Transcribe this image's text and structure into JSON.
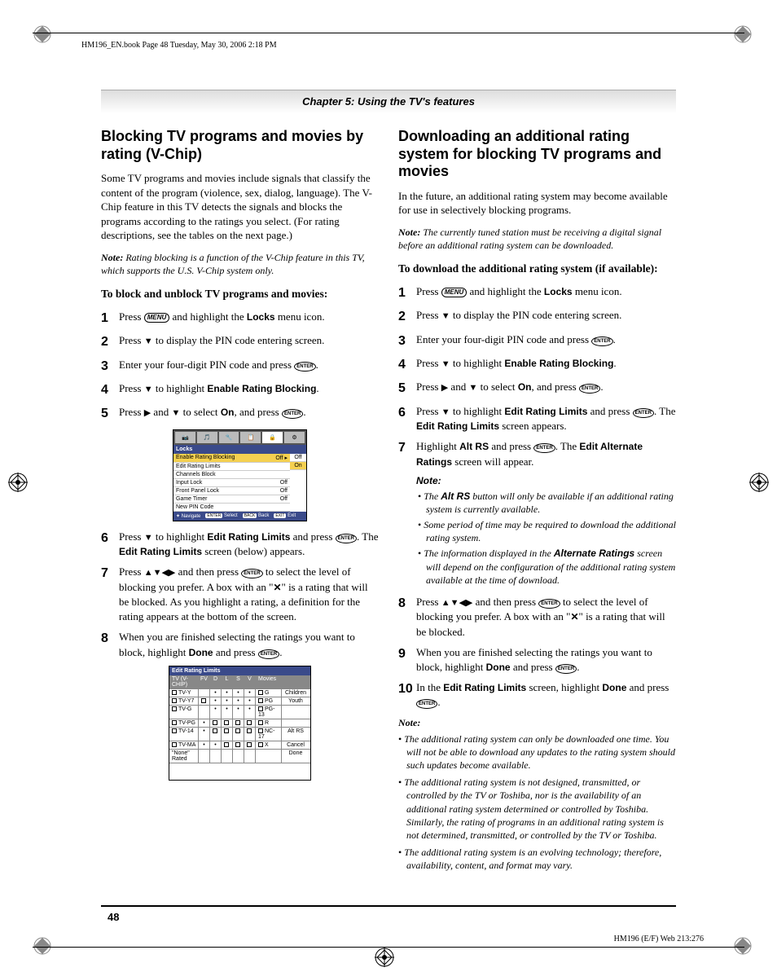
{
  "book_ref": "HM196_EN.book  Page 48  Tuesday, May 30, 2006  2:18 PM",
  "chapter": "Chapter 5: Using the TV's features",
  "left": {
    "h2": "Blocking TV programs and movies by rating (V-Chip)",
    "p1": "Some TV programs and movies include signals that classify the content of the program (violence, sex, dialog, language). The V-Chip feature in this TV detects the signals and blocks the programs according to the ratings you select. (For rating descriptions, see the tables on the next page.)",
    "note1_label": "Note:",
    "note1": " Rating blocking is a function of the V-Chip feature in this TV, which supports the U.S. V-Chip system only.",
    "sub1": "To block and unblock TV programs and movies:",
    "steps": {
      "s1a": "Press ",
      "s1b": " and highlight the ",
      "s1c": "Locks",
      "s1d": " menu icon.",
      "s2a": "Press ",
      "s2b": " to display the PIN code entering screen.",
      "s3a": "Enter your four-digit PIN code and press ",
      "s4a": "Press ",
      "s4b": " to highlight ",
      "s4c": "Enable Rating Blocking",
      "s5a": "Press ",
      "s5b": " and ",
      "s5c": " to select ",
      "s5d": "On",
      "s5e": ", and press ",
      "s6a": "Press ",
      "s6b": " to highlight ",
      "s6c": "Edit Rating Limits",
      "s6d": " and press ",
      "s6e": ". The ",
      "s6f": "Edit Rating Limits",
      "s6g": " screen (below) appears.",
      "s7a": "Press ",
      "s7b": " and then press ",
      "s7c": " to select the level of blocking you prefer. A box with an \"",
      "s7d": "\" is a rating that will be blocked. As you highlight a rating, a definition for the rating appears at the bottom of the screen.",
      "s8a": "When you are finished selecting the ratings you want to block, highlight ",
      "s8b": "Done",
      "s8c": " and press "
    },
    "osd": {
      "title": "Locks",
      "rows": [
        {
          "l": "Enable Rating Blocking",
          "r": "Off ▸",
          "sel": true
        },
        {
          "l": "Edit Rating Limits",
          "r": ""
        },
        {
          "l": "Channels Block",
          "r": ""
        },
        {
          "l": "Input Lock",
          "r": "Off"
        },
        {
          "l": "Front Panel Lock",
          "r": "Off"
        },
        {
          "l": "Game Timer",
          "r": "Off"
        },
        {
          "l": "New PIN Code",
          "r": ""
        }
      ],
      "opts": [
        "Off",
        "On"
      ],
      "opt_sel": 1,
      "foot": [
        "Navigate",
        "Select",
        "Back",
        "Exit"
      ]
    },
    "tbl": {
      "title": "Edit Rating Limits",
      "hdr": [
        "TV (V-CHIP)",
        "FV",
        "D",
        "L",
        "S",
        "V",
        "Movies",
        ""
      ],
      "rows": [
        [
          "TV-Y",
          "",
          "•",
          "•",
          "•",
          "•",
          "G",
          "Children"
        ],
        [
          "TV-Y7",
          "□",
          "•",
          "•",
          "•",
          "•",
          "PG",
          "Youth"
        ],
        [
          "TV-G",
          "",
          "•",
          "•",
          "•",
          "•",
          "PG-13",
          ""
        ],
        [
          "TV-PG",
          "•",
          "□",
          "□",
          "□",
          "□",
          "R",
          ""
        ],
        [
          "TV-14",
          "•",
          "□",
          "□",
          "□",
          "□",
          "NC-17",
          "Alt RS"
        ],
        [
          "TV-MA",
          "•",
          "•",
          "□",
          "□",
          "□",
          "X",
          "Cancel"
        ],
        [
          "\"None\" Rated",
          "",
          "",
          "",
          "",
          "",
          "",
          "Done"
        ]
      ]
    }
  },
  "right": {
    "h2": "Downloading an additional rating system for blocking TV programs and movies",
    "p1": "In the future, an additional rating system may become available for use in selectively blocking programs.",
    "note1_label": "Note:",
    "note1": " The currently tuned station must be receiving a digital signal before an additional rating system can be downloaded.",
    "sub1": "To download the additional rating system (if available):",
    "steps": {
      "s1a": "Press ",
      "s1b": " and highlight the ",
      "s1c": "Locks",
      "s1d": " menu icon.",
      "s2a": "Press ",
      "s2b": " to display the PIN code entering screen.",
      "s3a": "Enter your four-digit PIN code and press ",
      "s4a": "Press ",
      "s4b": " to highlight ",
      "s4c": "Enable Rating Blocking",
      "s5a": "Press ",
      "s5b": " and ",
      "s5c": " to select ",
      "s5d": "On",
      "s5e": ", and press ",
      "s6a": "Press ",
      "s6b": " to highlight ",
      "s6c": "Edit Rating Limits",
      "s6d": " and press ",
      "s6e": ". The ",
      "s6f": "Edit Rating Limits",
      "s6g": " screen appears.",
      "s7a": "Highlight ",
      "s7b": "Alt RS",
      "s7c": " and press ",
      "s7d": ". The ",
      "s7e": "Edit Alternate Ratings",
      "s7f": " screen will appear.",
      "s8a": "Press ",
      "s8b": " and then press ",
      "s8c": " to select the level of blocking you prefer. A box with an \"",
      "s8d": "\" is a rating that will be blocked.",
      "s9a": "When you are finished selecting the ratings you want to block, highlight ",
      "s9b": "Done",
      "s9c": " and press ",
      "s10a": "In the ",
      "s10b": "Edit Rating Limits",
      "s10c": " screen, highlight ",
      "s10d": "Done",
      "s10e": " and press "
    },
    "note2": "Note:",
    "bullets1": [
      {
        "pre": "The ",
        "b": "Alt RS",
        "post": " button will only be available if an additional rating system is currently available."
      },
      {
        "pre": "Some period of time may be required to download the additional rating system."
      },
      {
        "pre": "The information displayed in the ",
        "b": "Alternate Ratings",
        "post": " screen will depend on the configuration of the additional rating system available at the time of download."
      }
    ],
    "note3": "Note:",
    "bullets2": [
      "The additional rating system can only be downloaded one time. You will not be able to download any updates to the rating system should such updates become available.",
      "The additional rating system is not designed, transmitted, or controlled by the TV or Toshiba, nor is the availability of an additional rating system determined or controlled by Toshiba. Similarly, the rating of programs in an additional rating system is not determined, transmitted, or controlled by the TV or Toshiba.",
      "The additional rating system is an evolving technology; therefore, availability, content, and format may vary."
    ]
  },
  "page_num": "48",
  "foot_r": "HM196 (E/F) Web 213:276",
  "colors": {
    "accent": "#3a4a8a",
    "highlight": "#f5d050"
  }
}
